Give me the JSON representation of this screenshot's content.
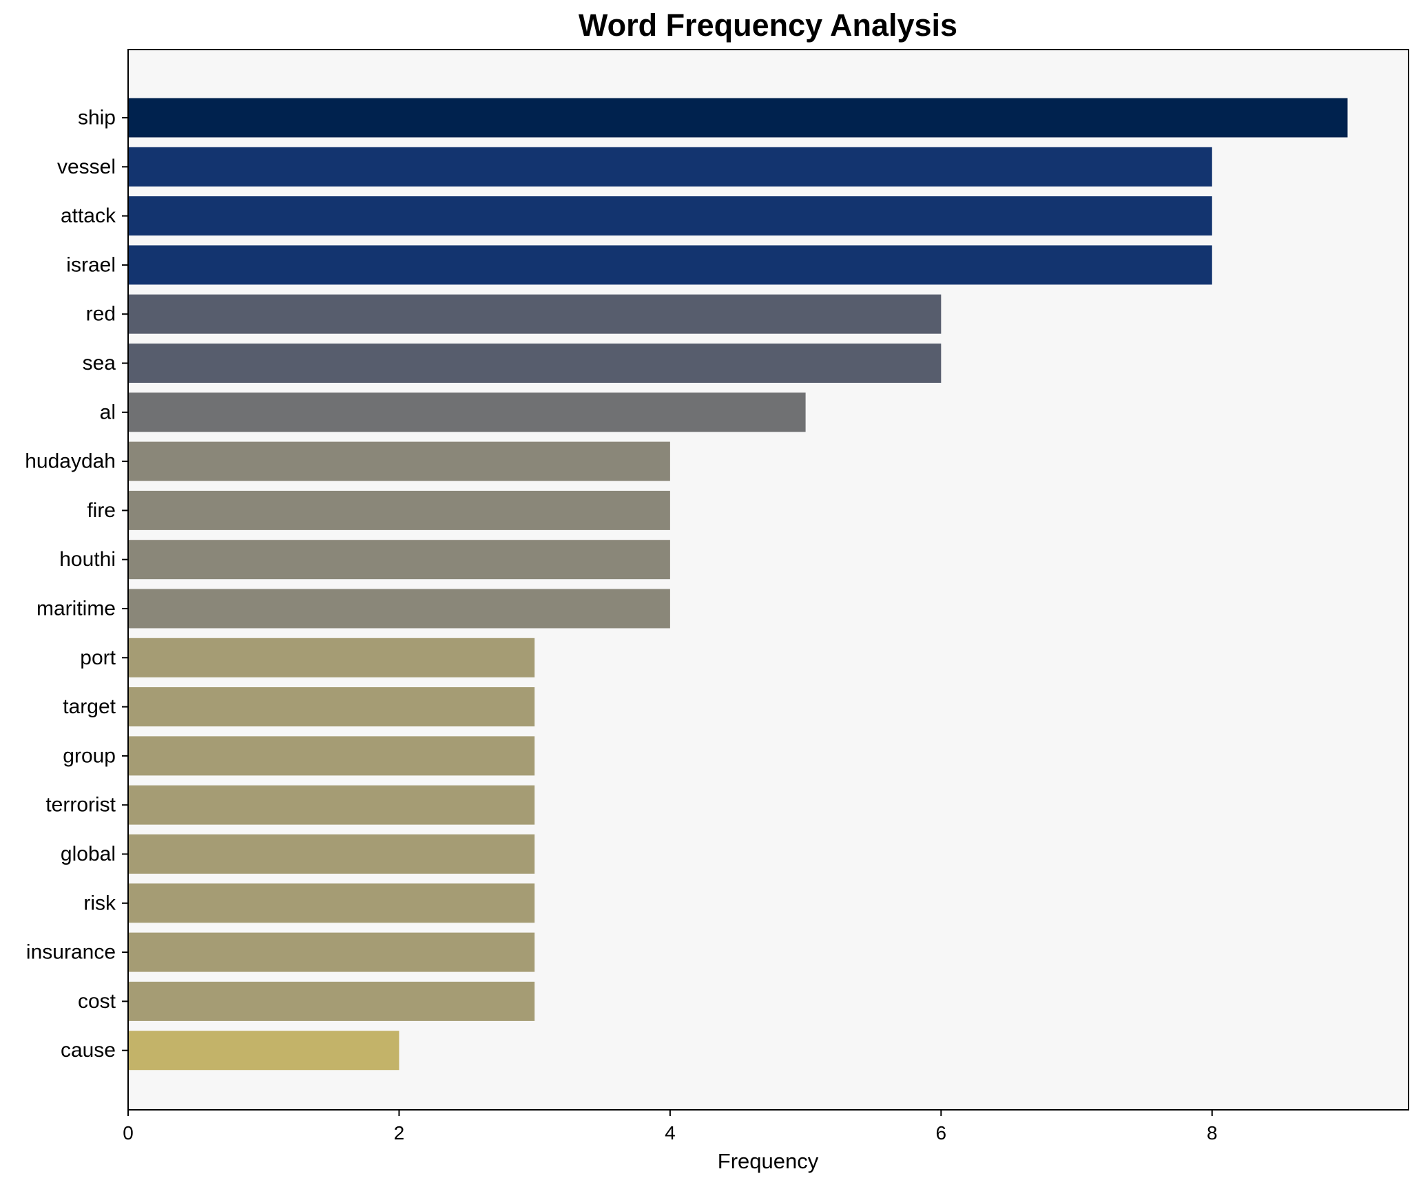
{
  "chart_data": {
    "type": "bar",
    "orientation": "horizontal",
    "title": "Word Frequency Analysis",
    "xlabel": "Frequency",
    "ylabel": "",
    "xlim": [
      0,
      9.45
    ],
    "xticks": [
      0,
      2,
      4,
      6,
      8
    ],
    "grid": false,
    "legend": "none",
    "categories": [
      "ship",
      "vessel",
      "attack",
      "israel",
      "red",
      "sea",
      "al",
      "hudaydah",
      "fire",
      "houthi",
      "maritime",
      "port",
      "target",
      "group",
      "terrorist",
      "global",
      "risk",
      "insurance",
      "cost",
      "cause"
    ],
    "values": [
      9,
      8,
      8,
      8,
      6,
      6,
      5,
      4,
      4,
      4,
      4,
      3,
      3,
      3,
      3,
      3,
      3,
      3,
      3,
      2
    ],
    "bar_colors": [
      "#00224e",
      "#13346f",
      "#13346f",
      "#13346f",
      "#575d6d",
      "#575d6d",
      "#707173",
      "#8a8779",
      "#8a8779",
      "#8a8779",
      "#8a8779",
      "#a59c74",
      "#a59c74",
      "#a59c74",
      "#a59c74",
      "#a59c74",
      "#a59c74",
      "#a59c74",
      "#a59c74",
      "#c3b369"
    ],
    "plot_background": "#f7f7f7"
  }
}
